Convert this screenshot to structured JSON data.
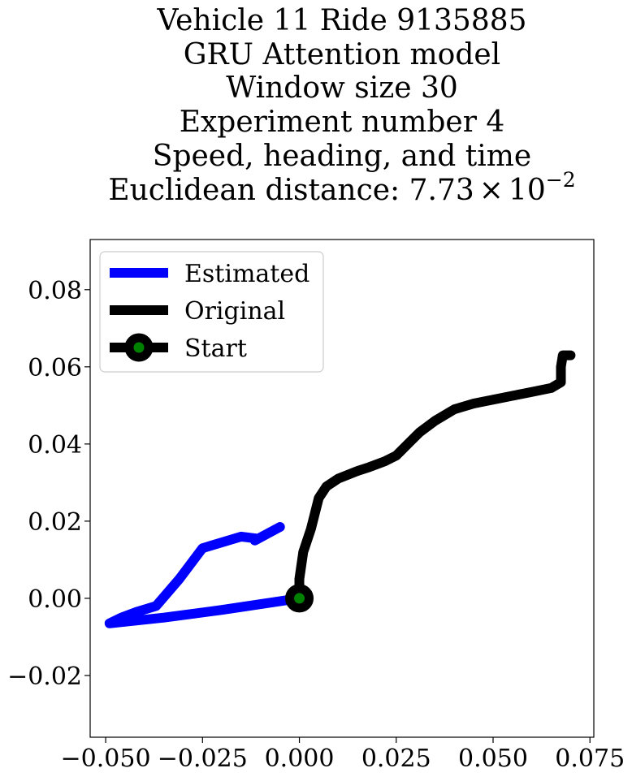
{
  "chart_data": {
    "type": "line",
    "title_lines": [
      "Vehicle 11 Ride 9135885",
      "GRU Attention model",
      "Window size 30",
      "Experiment number 4",
      "Speed, heading, and time"
    ],
    "title_distance": {
      "prefix": "Euclidean distance: 7.73",
      "times": "×",
      "base": "10",
      "exponent": "−2"
    },
    "xlabel": "",
    "ylabel": "",
    "xlim": [
      -0.054,
      0.076
    ],
    "ylim": [
      -0.036,
      0.093
    ],
    "x_ticks": [
      -0.05,
      -0.025,
      0.0,
      0.025,
      0.05,
      0.075
    ],
    "x_tick_labels": [
      "−0.050",
      "−0.025",
      "0.000",
      "0.025",
      "0.050",
      "0.075"
    ],
    "y_ticks": [
      -0.02,
      0.0,
      0.02,
      0.04,
      0.06,
      0.08
    ],
    "y_tick_labels": [
      "−0.02",
      "0.00",
      "0.02",
      "0.04",
      "0.06",
      "0.08"
    ],
    "grid": false,
    "legend_position": "top-left",
    "series": [
      {
        "name": "Estimated",
        "color": "#0000ff",
        "points": [
          [
            0.0,
            0.0
          ],
          [
            -0.02,
            -0.003
          ],
          [
            -0.035,
            -0.005
          ],
          [
            -0.049,
            -0.0065
          ],
          [
            -0.046,
            -0.005
          ],
          [
            -0.042,
            -0.0035
          ],
          [
            -0.037,
            -0.002
          ],
          [
            -0.031,
            0.005
          ],
          [
            -0.025,
            0.013
          ],
          [
            -0.015,
            0.016
          ],
          [
            -0.011,
            0.0155
          ],
          [
            -0.0115,
            0.015
          ],
          [
            -0.005,
            0.0185
          ]
        ]
      },
      {
        "name": "Original",
        "color": "#000000",
        "points": [
          [
            0.0,
            0.0
          ],
          [
            0.0,
            0.005
          ],
          [
            0.001,
            0.012
          ],
          [
            0.003,
            0.018
          ],
          [
            0.004,
            0.022
          ],
          [
            0.005,
            0.026
          ],
          [
            0.007,
            0.029
          ],
          [
            0.01,
            0.031
          ],
          [
            0.015,
            0.033
          ],
          [
            0.018,
            0.034
          ],
          [
            0.022,
            0.0355
          ],
          [
            0.025,
            0.037
          ],
          [
            0.027,
            0.039
          ],
          [
            0.031,
            0.043
          ],
          [
            0.035,
            0.046
          ],
          [
            0.04,
            0.049
          ],
          [
            0.045,
            0.0505
          ],
          [
            0.05,
            0.0515
          ],
          [
            0.055,
            0.0525
          ],
          [
            0.06,
            0.0535
          ],
          [
            0.065,
            0.0545
          ],
          [
            0.0675,
            0.056
          ],
          [
            0.0675,
            0.06
          ],
          [
            0.068,
            0.063
          ],
          [
            0.07,
            0.063
          ]
        ]
      },
      {
        "name": "Start",
        "color": "#000000",
        "marker_face": "#008000",
        "points": [
          [
            0.0,
            0.0
          ]
        ]
      }
    ]
  }
}
